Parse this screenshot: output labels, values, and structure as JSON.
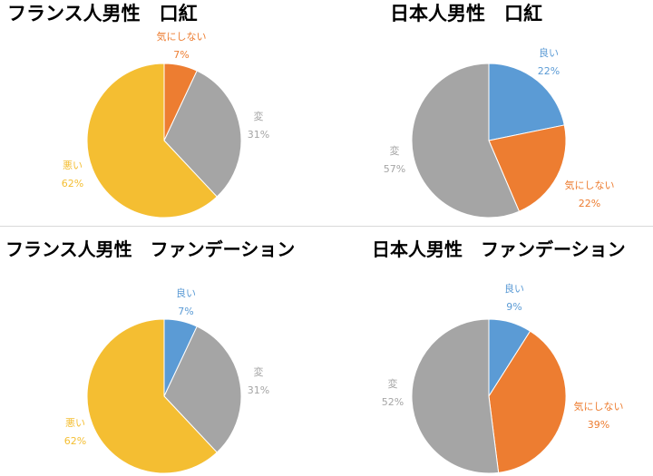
{
  "chart_data": [
    {
      "type": "pie",
      "title": "フランス人男性　口紅",
      "slices": [
        {
          "label": "気にしない",
          "value": 7,
          "value_text": "7%",
          "color": "#ED7D31"
        },
        {
          "label": "変",
          "value": 31,
          "value_text": "31%",
          "color": "#A5A5A5"
        },
        {
          "label": "悪い",
          "value": 62,
          "value_text": "62%",
          "color": "#F4BE32"
        }
      ]
    },
    {
      "type": "pie",
      "title": "日本人男性　口紅",
      "slices": [
        {
          "label": "良い",
          "value": 22,
          "value_text": "22%",
          "color": "#5B9BD5"
        },
        {
          "label": "気にしない",
          "value": 22,
          "value_text": "22%",
          "color": "#ED7D31"
        },
        {
          "label": "変",
          "value": 57,
          "value_text": "57%",
          "color": "#A5A5A5"
        }
      ]
    },
    {
      "type": "pie",
      "title": "フランス人男性　ファンデーション",
      "slices": [
        {
          "label": "良い",
          "value": 7,
          "value_text": "7%",
          "color": "#5B9BD5"
        },
        {
          "label": "変",
          "value": 31,
          "value_text": "31%",
          "color": "#A5A5A5"
        },
        {
          "label": "悪い",
          "value": 62,
          "value_text": "62%",
          "color": "#F4BE32"
        }
      ]
    },
    {
      "type": "pie",
      "title": "日本人男性　ファンデーション",
      "slices": [
        {
          "label": "良い",
          "value": 9,
          "value_text": "9%",
          "color": "#5B9BD5"
        },
        {
          "label": "気にしない",
          "value": 39,
          "value_text": "39%",
          "color": "#ED7D31"
        },
        {
          "label": "変",
          "value": 52,
          "value_text": "52%",
          "color": "#A5A5A5"
        }
      ]
    }
  ]
}
